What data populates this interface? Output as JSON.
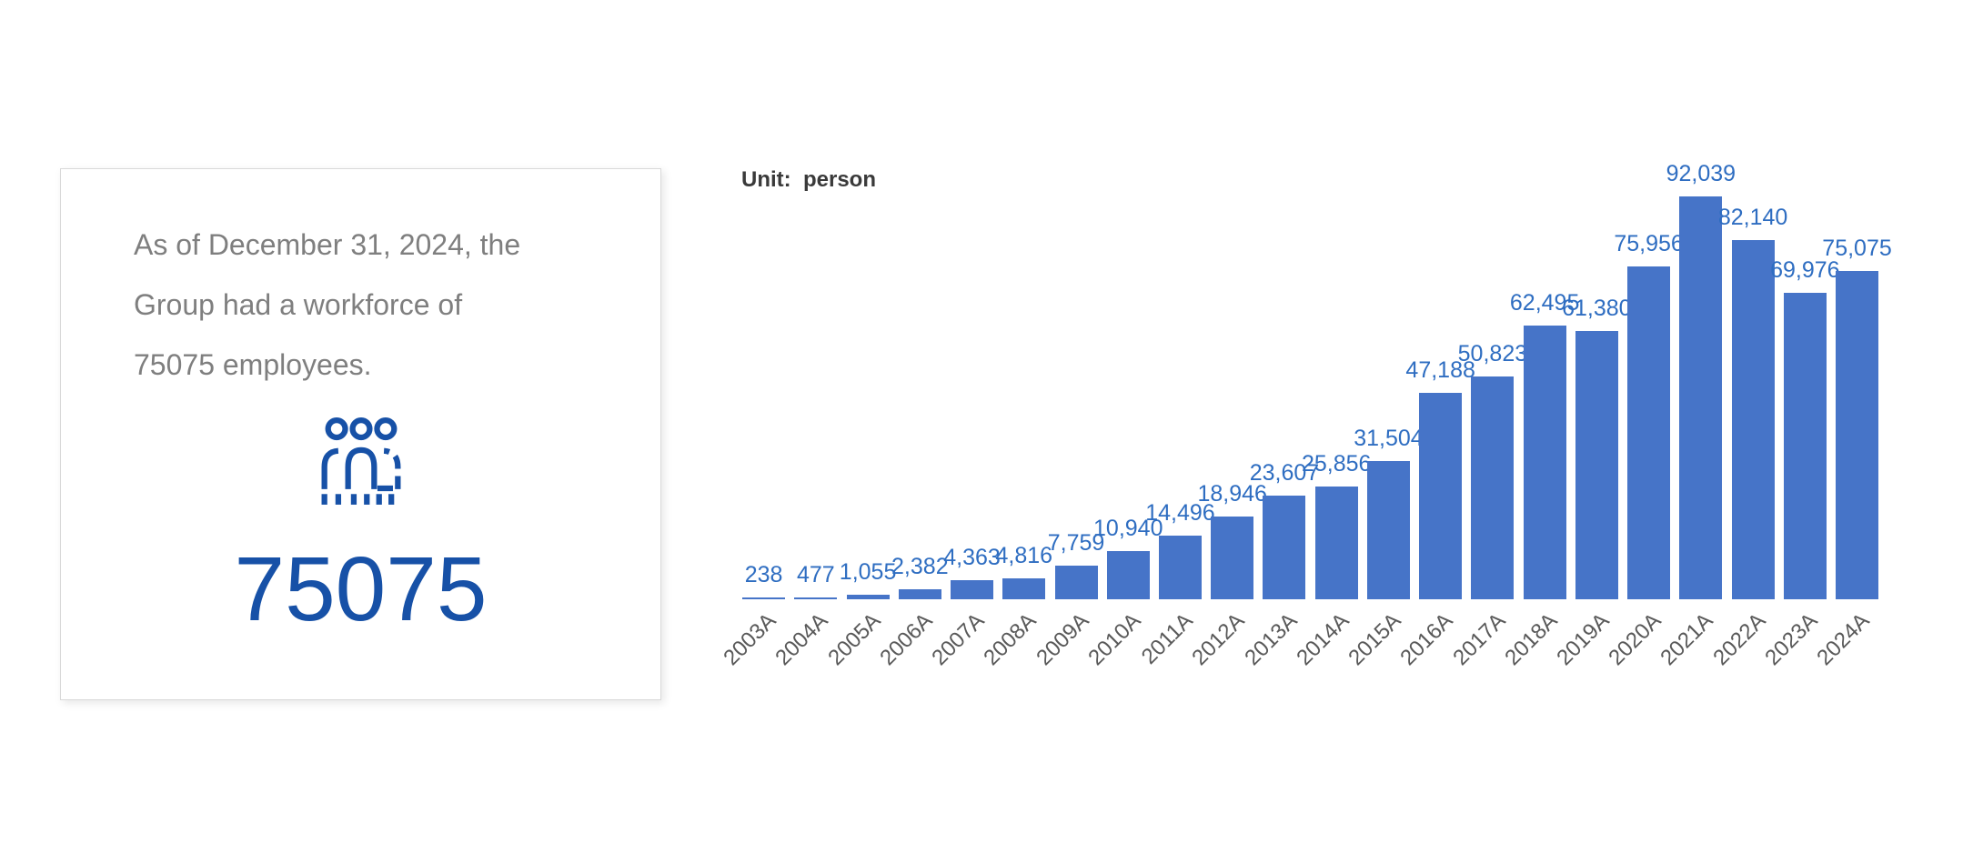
{
  "card": {
    "text": "As of December 31, 2024, the\nGroup had a workforce of\n75075 employees.",
    "value": "75075",
    "icon": "people-group",
    "number_color": "#1751A7",
    "text_color": "#7F7F7F"
  },
  "chart": {
    "unit_label": "Unit:  person"
  },
  "chart_data": {
    "type": "bar",
    "title": "",
    "xlabel": "",
    "ylabel": "",
    "unit": "person",
    "categories": [
      "2003A",
      "2004A",
      "2005A",
      "2006A",
      "2007A",
      "2008A",
      "2009A",
      "2010A",
      "2011A",
      "2012A",
      "2013A",
      "2014A",
      "2015A",
      "2016A",
      "2017A",
      "2018A",
      "2019A",
      "2020A",
      "2021A",
      "2022A",
      "2023A",
      "2024A"
    ],
    "values": [
      238,
      477,
      1055,
      2382,
      4363,
      4816,
      7759,
      10940,
      14496,
      18946,
      23607,
      25856,
      31504,
      47188,
      50823,
      62495,
      61380,
      75956,
      92039,
      82140,
      69976,
      75075
    ],
    "value_labels": [
      "238",
      "477",
      "1,055",
      "2,382",
      "4,363",
      "4,816",
      "7,759",
      "10,940",
      "14,496",
      "18,946",
      "23,607",
      "25,856",
      "31,504",
      "47,188",
      "50,823",
      "62,495",
      "61,380",
      "75,956",
      "92,039",
      "82,140",
      "69,976",
      "75,075"
    ],
    "ylim": [
      0,
      92039
    ],
    "grid": false,
    "legend": "none",
    "data_labels": "above-bars",
    "x_tick_rotation": -45,
    "bar_color": "#4674C8",
    "label_color": "#2E6DC1",
    "axis_label_color": "#595959"
  }
}
